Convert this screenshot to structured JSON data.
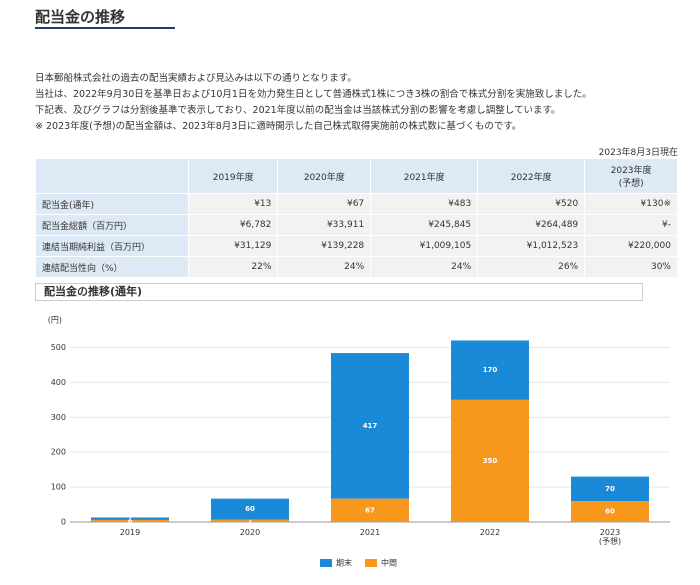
{
  "header": {
    "title": "配当金の推移"
  },
  "paragraphs": [
    "日本郵船株式会社の過去の配当実績および見込みは以下の通りとなります。",
    "当社は、2022年9月30日を基準日および10月1日を効力発生日として普通株式1株につき3株の割合で株式分割を実施致しました。",
    "下記表、及びグラフは分割後基準で表示しており、2021年度以前の配当金は当該株式分割の影響を考慮し調整しています。",
    "※ 2023年度(予想)の配当金額は、2023年8月3日に適時開示した自己株式取得実施前の株式数に基づくものです。"
  ],
  "as_of": "2023年8月3日現在",
  "table": {
    "columns": [
      "2019年度",
      "2020年度",
      "2021年度",
      "2022年度",
      "2023年度 (予想)"
    ],
    "rows": [
      [
        "配当金(通年)",
        "¥13",
        "¥67",
        "¥483",
        "¥520",
        "¥130※"
      ],
      [
        "配当金総額（百万円）",
        "¥6,782",
        "¥33,911",
        "¥245,845",
        "¥264,489",
        "¥-"
      ],
      [
        "連結当期純利益（百万円）",
        "¥31,129",
        "¥139,228",
        "¥1,009,105",
        "¥1,012,523",
        "¥220,000"
      ],
      [
        "連結配当性向（%）",
        "22%",
        "24%",
        "24%",
        "26%",
        "30%"
      ]
    ]
  },
  "chart_data": {
    "type": "bar",
    "stacked": true,
    "title": "配当金の推移(通年)",
    "y_unit": "(円)",
    "categories": [
      "2019",
      "2020",
      "2021",
      "2022",
      "2023 (予想)"
    ],
    "series": [
      {
        "name": "中間",
        "color": "#f7981d",
        "values": [
          6,
          7,
          67,
          350,
          60
        ]
      },
      {
        "name": "期末",
        "color": "#1a8ad8",
        "values": [
          7,
          60,
          417,
          170,
          70
        ]
      }
    ],
    "ylim": [
      0,
      550
    ],
    "yticks": [
      0,
      100,
      200,
      300,
      400,
      500
    ],
    "grid": true
  }
}
